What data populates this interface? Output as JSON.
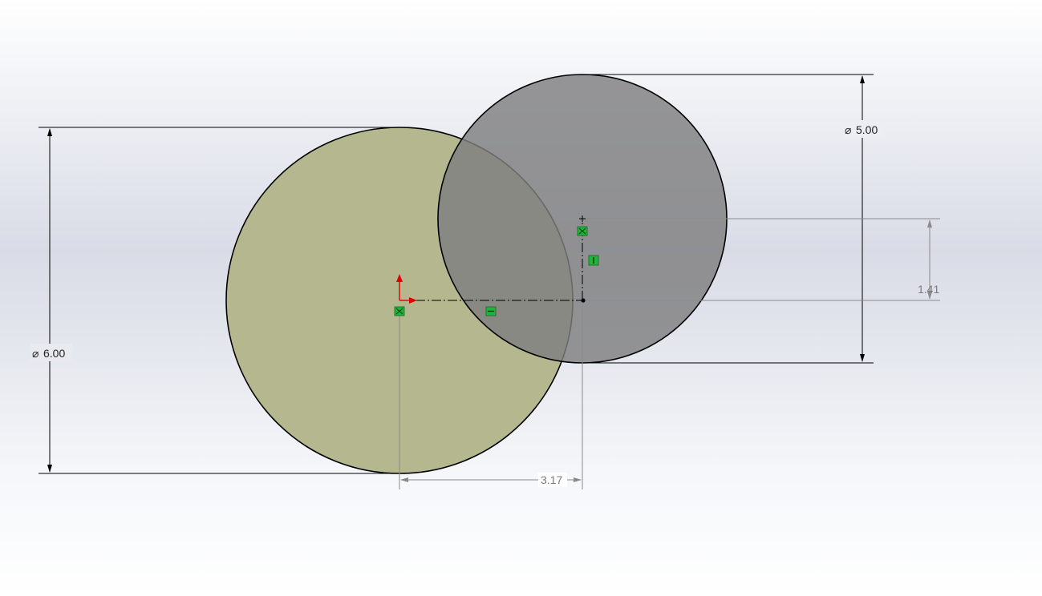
{
  "colors": {
    "large_circle_fill": "#b5b88e",
    "small_circle_fill": "#8c8c8c",
    "small_circle_opacity": "0.88",
    "outline": "#000000",
    "dimension_line": "#000000",
    "reference_dimension": "#8a8a8a",
    "constraint_marker": "#22b33c",
    "origin_arrow": "#e00000"
  },
  "sketch": {
    "large_circle": {
      "diameter_label": "6.00"
    },
    "small_circle": {
      "diameter_label": "5.00"
    },
    "horizontal_offset": {
      "label": "3.17"
    },
    "vertical_offset": {
      "label": "1.41"
    }
  },
  "icons": {
    "diameter_symbol": "⌀",
    "origin": "origin-arrows-icon",
    "coincident": "coincident-relation-icon",
    "horizontal": "horizontal-relation-icon",
    "vertical": "vertical-relation-icon"
  }
}
